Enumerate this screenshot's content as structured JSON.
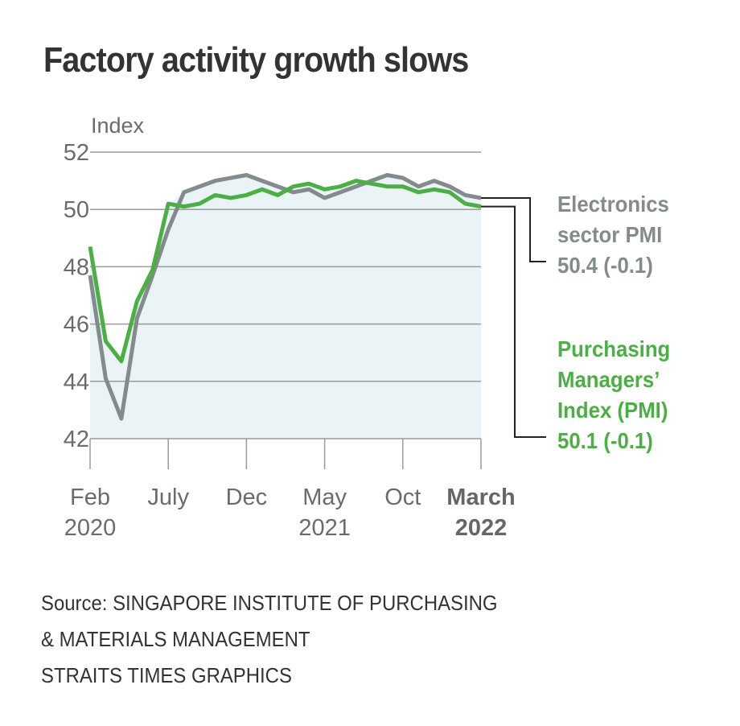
{
  "chart_data": {
    "type": "line",
    "title": "Factory activity growth slows",
    "ylabel": "Index",
    "xlabel": "",
    "ylim": [
      42,
      52
    ],
    "yticks": [
      42,
      44,
      46,
      48,
      50,
      52
    ],
    "grid": true,
    "area_fill_color": "#eaf3f5",
    "x": [
      "Feb 2020",
      "Mar 2020",
      "Apr 2020",
      "May 2020",
      "Jun 2020",
      "Jul 2020",
      "Aug 2020",
      "Sep 2020",
      "Oct 2020",
      "Nov 2020",
      "Dec 2020",
      "Jan 2021",
      "Feb 2021",
      "Mar 2021",
      "Apr 2021",
      "May 2021",
      "Jun 2021",
      "Jul 2021",
      "Aug 2021",
      "Sep 2021",
      "Oct 2021",
      "Nov 2021",
      "Dec 2021",
      "Jan 2022",
      "Feb 2022",
      "Mar 2022"
    ],
    "xticks": [
      {
        "index": 0,
        "line1": "Feb",
        "line2": "2020",
        "bold": false
      },
      {
        "index": 5,
        "line1": "July",
        "line2": "",
        "bold": false
      },
      {
        "index": 10,
        "line1": "Dec",
        "line2": "",
        "bold": false
      },
      {
        "index": 15,
        "line1": "May",
        "line2": "2021",
        "bold": false
      },
      {
        "index": 20,
        "line1": "Oct",
        "line2": "",
        "bold": false
      },
      {
        "index": 25,
        "line1": "March",
        "line2": "2022",
        "bold": true
      }
    ],
    "series": [
      {
        "name": "Electronics sector PMI",
        "color": "#838b8c",
        "values": [
          47.7,
          44.1,
          42.7,
          46.2,
          47.7,
          49.3,
          50.6,
          50.8,
          51.0,
          51.1,
          51.2,
          51.0,
          50.8,
          50.6,
          50.7,
          50.4,
          50.6,
          50.8,
          51.0,
          51.2,
          51.1,
          50.8,
          51.0,
          50.8,
          50.5,
          50.4
        ],
        "label_lines": [
          "Electronics",
          "sector PMI",
          "50.4 (-0.1)"
        ]
      },
      {
        "name": "Purchasing Managers' Index (PMI)",
        "color": "#4bb043",
        "values": [
          48.7,
          45.4,
          44.7,
          46.8,
          47.9,
          50.2,
          50.1,
          50.2,
          50.5,
          50.4,
          50.5,
          50.7,
          50.5,
          50.8,
          50.9,
          50.7,
          50.8,
          51.0,
          50.9,
          50.8,
          50.8,
          50.6,
          50.7,
          50.6,
          50.2,
          50.1
        ],
        "label_lines": [
          "Purchasing",
          "Managers’",
          "Index (PMI)",
          "50.1 (-0.1)"
        ]
      }
    ],
    "annotations": {
      "electronics": "Electronics\nsector PMI\n50.4 (-0.1)",
      "pmi": "Purchasing\nManagers’\nIndex (PMI)\n50.1 (-0.1)"
    }
  },
  "source": {
    "line1": "Source: SINGAPORE INSTITUTE OF PURCHASING",
    "line2": "& MATERIALS MANAGEMENT",
    "line3": "STRAITS TIMES GRAPHICS"
  }
}
